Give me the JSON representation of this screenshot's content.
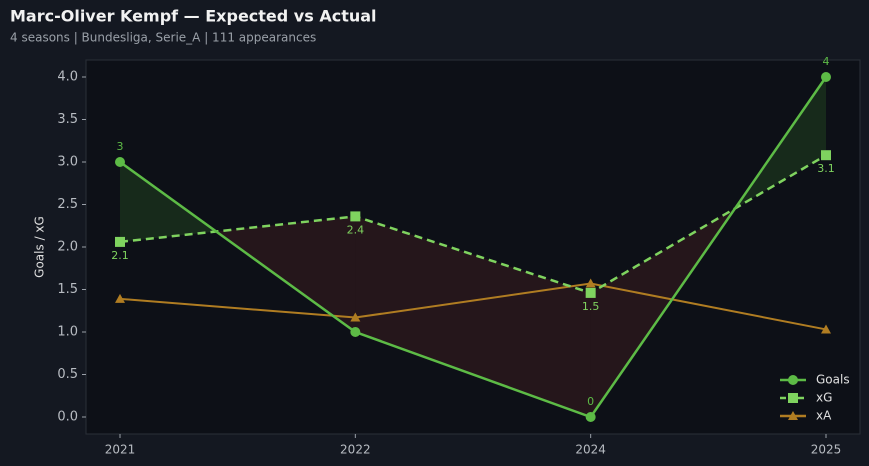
{
  "chart_data": {
    "type": "line",
    "title": "Marc-Oliver Kempf — Expected vs Actual",
    "subtitle": "4 seasons | Bundesliga, Serie_A | 111 appearances",
    "y_label": "Goals / xG",
    "categories": [
      "2021",
      "2022",
      "2024",
      "2025"
    ],
    "series": [
      {
        "name": "Goals",
        "color": "#5dbb46",
        "marker": "circle",
        "dashed": false,
        "values": [
          3,
          1,
          0,
          4
        ],
        "value_labels": [
          "3",
          null,
          "0",
          "4"
        ]
      },
      {
        "name": "xG",
        "color": "#7fd35f",
        "marker": "square",
        "dashed": true,
        "values": [
          2.06,
          2.36,
          1.46,
          3.08
        ],
        "value_labels": [
          "2.1",
          "2.4",
          "1.5",
          "3.1"
        ]
      },
      {
        "name": "xA",
        "color": "#b07d22",
        "marker": "triangle",
        "dashed": false,
        "values": [
          1.39,
          1.17,
          1.57,
          1.03
        ]
      }
    ],
    "ylim": [
      -0.2,
      4.2
    ],
    "yticks": [
      {
        "value": 0,
        "label": "0.0"
      },
      {
        "value": 0.5,
        "label": "0.5"
      },
      {
        "value": 1,
        "label": "1.0"
      },
      {
        "value": 1.5,
        "label": "1.5"
      },
      {
        "value": 2,
        "label": "2.0"
      },
      {
        "value": 2.5,
        "label": "2.5"
      },
      {
        "value": 3,
        "label": "3.0"
      },
      {
        "value": 3.5,
        "label": "3.5"
      },
      {
        "value": 4,
        "label": "4.0"
      }
    ],
    "legend": "lower right"
  }
}
